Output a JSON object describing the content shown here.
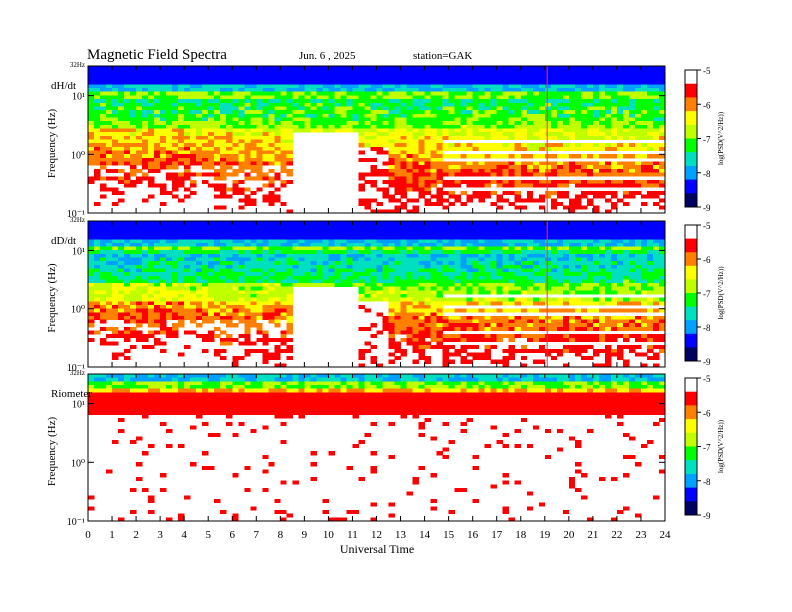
{
  "chart_data": {
    "type": "heatmap",
    "title": "Magnetic  Field  Spectra",
    "date": "Jun. 6  , 2025",
    "station": "station=GAK",
    "xlabel": "Universal Time",
    "x_ticks": [
      "0",
      "1",
      "2",
      "3",
      "4",
      "5",
      "6",
      "7",
      "8",
      "9",
      "10",
      "11",
      "12",
      "13",
      "14",
      "15",
      "16",
      "17",
      "18",
      "19",
      "20",
      "21",
      "22",
      "23",
      "24"
    ],
    "xlim": [
      0,
      24
    ],
    "panels": [
      {
        "label": "dH/dt",
        "ylabel": "Frequency  (Hz)",
        "top_label": "32Hz",
        "y_ticks": [
          "10¹",
          "10⁰",
          "10⁻¹"
        ],
        "ylim_hz": [
          0.1,
          32
        ],
        "y_scale": "log",
        "colorbar": {
          "label": "log(PSD(V^2/Hz))",
          "ticks": [
            "-5",
            "-6",
            "-7",
            "-8",
            "-9"
          ],
          "range": [
            -9,
            -5
          ]
        }
      },
      {
        "label": "dD/dt",
        "ylabel": "Frequency  (Hz)",
        "top_label": "32Hz",
        "y_ticks": [
          "10¹",
          "10⁰",
          "10⁻¹"
        ],
        "ylim_hz": [
          0.1,
          32
        ],
        "y_scale": "log",
        "colorbar": {
          "label": "log(PSD(V^2/Hz))",
          "ticks": [
            "-5",
            "-6",
            "-7",
            "-8",
            "-9"
          ],
          "range": [
            -9,
            -5
          ]
        }
      },
      {
        "label": "Riometer",
        "ylabel": "Frequency  (Hz)",
        "top_label": "32Hz",
        "y_ticks": [
          "10¹",
          "10⁰",
          "10⁻¹"
        ],
        "ylim_hz": [
          0.1,
          32
        ],
        "y_scale": "log",
        "colorbar": {
          "label": "log(PSD(V^2/Hz))",
          "ticks": [
            "-5",
            "-6",
            "-7",
            "-8",
            "-9"
          ],
          "range": [
            -9,
            -5
          ]
        }
      }
    ]
  },
  "colors": {
    "colormap": [
      "#000060",
      "#0000ff",
      "#00a0ff",
      "#00e0c0",
      "#00ff00",
      "#c0ff00",
      "#ffff00",
      "#ff8000",
      "#ff0000",
      "#ffffff"
    ],
    "background": "#ffffff"
  }
}
